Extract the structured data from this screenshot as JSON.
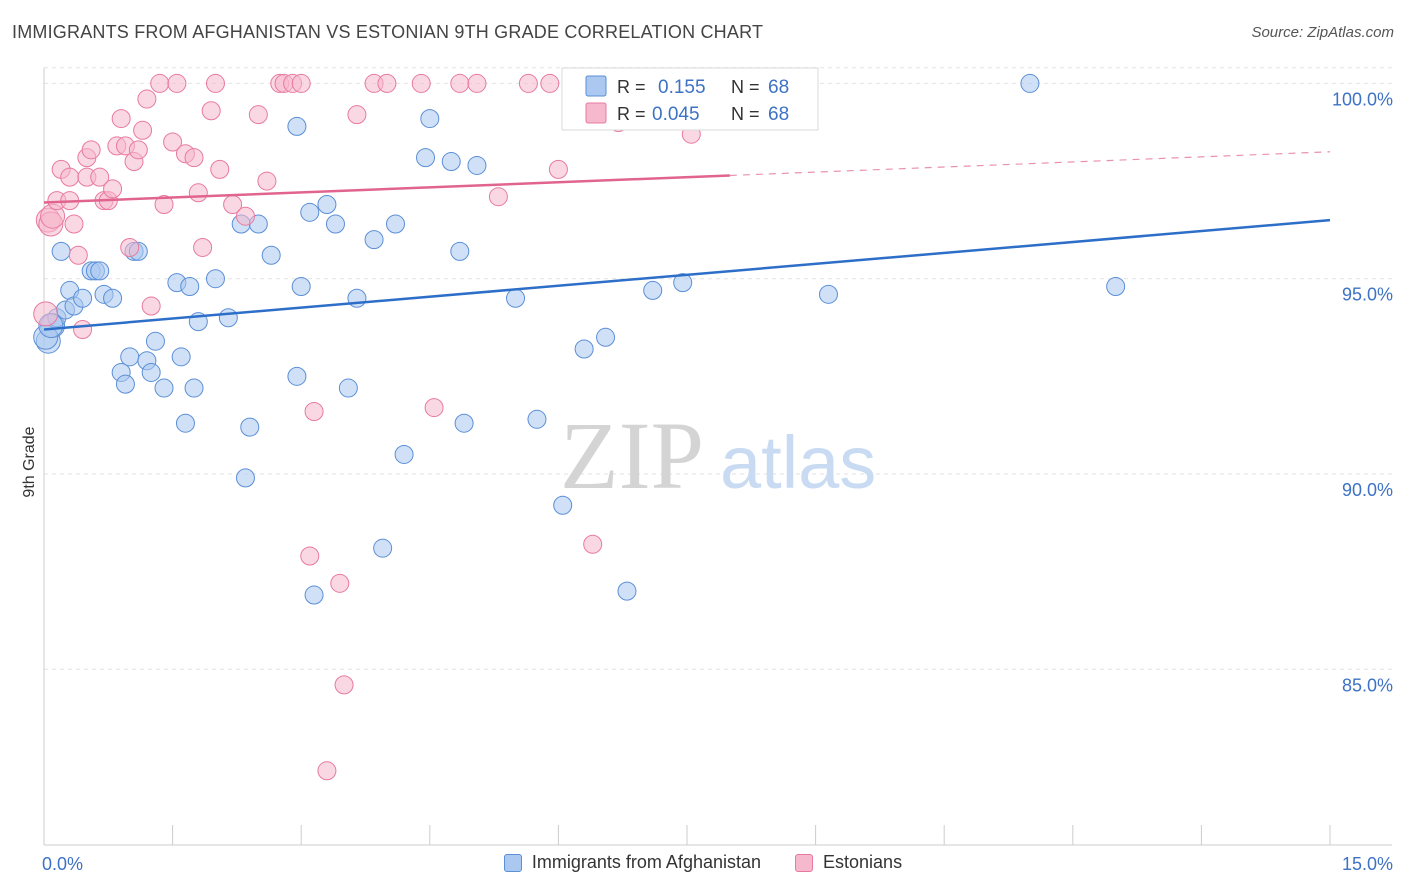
{
  "header": {
    "title": "IMMIGRANTS FROM AFGHANISTAN VS ESTONIAN 9TH GRADE CORRELATION CHART",
    "source": "Source: ZipAtlas.com"
  },
  "watermark": {
    "zip": "ZIP",
    "atlas": "atlas"
  },
  "legend": {
    "r_label": "R =",
    "n_label": "N =",
    "rows": [
      {
        "r": "0.155",
        "n": "68"
      },
      {
        "r": "0.045",
        "n": "68"
      }
    ]
  },
  "bottom_legend": [
    "Immigrants from Afghanistan",
    "Estonians"
  ],
  "colors": {
    "blue_fill": "#aac8f0",
    "blue_stroke": "#5b8fd6",
    "blue_line": "#2d6ec9",
    "pink_fill": "#f5b8cc",
    "pink_stroke": "#e87aa0",
    "pink_line": "#e0648e",
    "tick_label": "#3d72c4",
    "grid": "#e2e2e2"
  },
  "chart_data": {
    "type": "scatter",
    "title": "IMMIGRANTS FROM AFGHANISTAN VS ESTONIAN 9TH GRADE CORRELATION CHART",
    "xlabel": "",
    "ylabel": "9th Grade",
    "xlim": [
      0,
      15
    ],
    "ylim": [
      80.5,
      100.6
    ],
    "x_tick_labels": [
      {
        "value": 0,
        "label": "0.0%"
      },
      {
        "value": 15,
        "label": "15.0%"
      }
    ],
    "y_tick_labels": [
      {
        "value": 100,
        "label": "100.0%"
      },
      {
        "value": 95,
        "label": "95.0%"
      },
      {
        "value": 90,
        "label": "90.0%"
      },
      {
        "value": 85,
        "label": "85.0%"
      }
    ],
    "grid": true,
    "legend_position": "top-center",
    "series": [
      {
        "name": "Immigrants from Afghanistan",
        "color": "#5b8fd6",
        "r": 0.155,
        "n": 68,
        "trend": {
          "x": [
            0,
            15
          ],
          "y": [
            93.7,
            96.5
          ]
        },
        "points": [
          [
            0.05,
            93.4
          ],
          [
            0.1,
            93.8
          ],
          [
            0.15,
            94.0
          ],
          [
            0.25,
            94.2
          ],
          [
            0.3,
            94.7
          ],
          [
            0.35,
            94.3
          ],
          [
            0.45,
            94.5
          ],
          [
            0.55,
            95.2
          ],
          [
            0.6,
            95.2
          ],
          [
            0.65,
            95.2
          ],
          [
            0.7,
            94.6
          ],
          [
            0.8,
            94.5
          ],
          [
            0.2,
            95.7
          ],
          [
            1.05,
            95.7
          ],
          [
            1.1,
            95.7
          ],
          [
            0.9,
            92.6
          ],
          [
            0.95,
            92.3
          ],
          [
            1.0,
            93.0
          ],
          [
            1.2,
            92.9
          ],
          [
            1.25,
            92.6
          ],
          [
            1.3,
            93.4
          ],
          [
            1.4,
            92.2
          ],
          [
            1.55,
            94.9
          ],
          [
            1.6,
            93.0
          ],
          [
            1.65,
            91.3
          ],
          [
            1.75,
            92.2
          ],
          [
            1.8,
            93.9
          ],
          [
            2.0,
            95.0
          ],
          [
            2.15,
            94.0
          ],
          [
            2.3,
            96.4
          ],
          [
            2.35,
            89.9
          ],
          [
            2.4,
            91.2
          ],
          [
            2.5,
            96.4
          ],
          [
            2.65,
            95.6
          ],
          [
            2.95,
            98.9
          ],
          [
            2.95,
            92.5
          ],
          [
            3.0,
            94.8
          ],
          [
            3.1,
            96.7
          ],
          [
            3.15,
            86.9
          ],
          [
            3.3,
            96.9
          ],
          [
            3.4,
            96.4
          ],
          [
            3.55,
            92.2
          ],
          [
            3.65,
            94.5
          ],
          [
            3.85,
            96.0
          ],
          [
            3.95,
            88.1
          ],
          [
            4.1,
            96.4
          ],
          [
            4.2,
            90.5
          ],
          [
            4.45,
            98.1
          ],
          [
            4.5,
            99.1
          ],
          [
            4.75,
            98.0
          ],
          [
            4.85,
            95.7
          ],
          [
            4.9,
            91.3
          ],
          [
            5.05,
            97.9
          ],
          [
            5.5,
            94.5
          ],
          [
            5.75,
            91.4
          ],
          [
            6.05,
            89.2
          ],
          [
            6.3,
            93.2
          ],
          [
            6.55,
            93.5
          ],
          [
            6.8,
            87.0
          ],
          [
            7.1,
            94.7
          ],
          [
            7.45,
            94.9
          ],
          [
            8.55,
            100.0
          ],
          [
            9.15,
            94.6
          ],
          [
            11.5,
            100.0
          ],
          [
            12.5,
            94.8
          ],
          [
            0.02,
            93.5
          ],
          [
            0.08,
            93.8
          ],
          [
            1.7,
            94.8
          ]
        ]
      },
      {
        "name": "Estonians",
        "color": "#e87aa0",
        "r": 0.045,
        "n": 68,
        "trend": {
          "x": [
            0,
            15
          ],
          "y": [
            96.95,
            98.25
          ],
          "solid_until_x": 8.0
        },
        "points": [
          [
            0.02,
            94.1
          ],
          [
            0.05,
            96.5
          ],
          [
            0.08,
            96.4
          ],
          [
            0.1,
            96.6
          ],
          [
            0.15,
            97.0
          ],
          [
            0.2,
            97.8
          ],
          [
            0.3,
            97.6
          ],
          [
            0.3,
            97.0
          ],
          [
            0.35,
            96.4
          ],
          [
            0.4,
            95.6
          ],
          [
            0.45,
            93.7
          ],
          [
            0.5,
            97.6
          ],
          [
            0.5,
            98.1
          ],
          [
            0.55,
            98.3
          ],
          [
            0.65,
            97.6
          ],
          [
            0.7,
            97.0
          ],
          [
            0.75,
            97.0
          ],
          [
            0.8,
            97.3
          ],
          [
            0.85,
            98.4
          ],
          [
            0.9,
            99.1
          ],
          [
            0.95,
            98.4
          ],
          [
            1.0,
            95.8
          ],
          [
            1.05,
            98.0
          ],
          [
            1.1,
            98.3
          ],
          [
            1.15,
            98.8
          ],
          [
            1.2,
            99.6
          ],
          [
            1.25,
            94.3
          ],
          [
            1.35,
            100.0
          ],
          [
            1.4,
            96.9
          ],
          [
            1.5,
            98.5
          ],
          [
            1.55,
            100.0
          ],
          [
            1.65,
            98.2
          ],
          [
            1.75,
            98.1
          ],
          [
            1.8,
            97.2
          ],
          [
            1.85,
            95.8
          ],
          [
            1.95,
            99.3
          ],
          [
            2.0,
            100.0
          ],
          [
            2.05,
            97.8
          ],
          [
            2.2,
            96.9
          ],
          [
            2.35,
            96.6
          ],
          [
            2.5,
            99.2
          ],
          [
            2.6,
            97.5
          ],
          [
            2.75,
            100.0
          ],
          [
            2.8,
            100.0
          ],
          [
            2.9,
            100.0
          ],
          [
            3.0,
            100.0
          ],
          [
            3.1,
            87.9
          ],
          [
            3.15,
            91.6
          ],
          [
            3.3,
            82.4
          ],
          [
            3.45,
            87.2
          ],
          [
            3.5,
            84.6
          ],
          [
            3.65,
            99.2
          ],
          [
            3.85,
            100.0
          ],
          [
            4.0,
            100.0
          ],
          [
            4.4,
            100.0
          ],
          [
            4.55,
            91.7
          ],
          [
            4.85,
            100.0
          ],
          [
            5.05,
            100.0
          ],
          [
            5.3,
            97.1
          ],
          [
            5.65,
            100.0
          ],
          [
            5.9,
            100.0
          ],
          [
            6.0,
            97.8
          ],
          [
            6.4,
            88.2
          ],
          [
            6.6,
            100.0
          ],
          [
            6.7,
            99.0
          ],
          [
            6.85,
            100.0
          ],
          [
            7.55,
            98.7
          ],
          [
            8.1,
            100.0
          ]
        ]
      }
    ]
  }
}
